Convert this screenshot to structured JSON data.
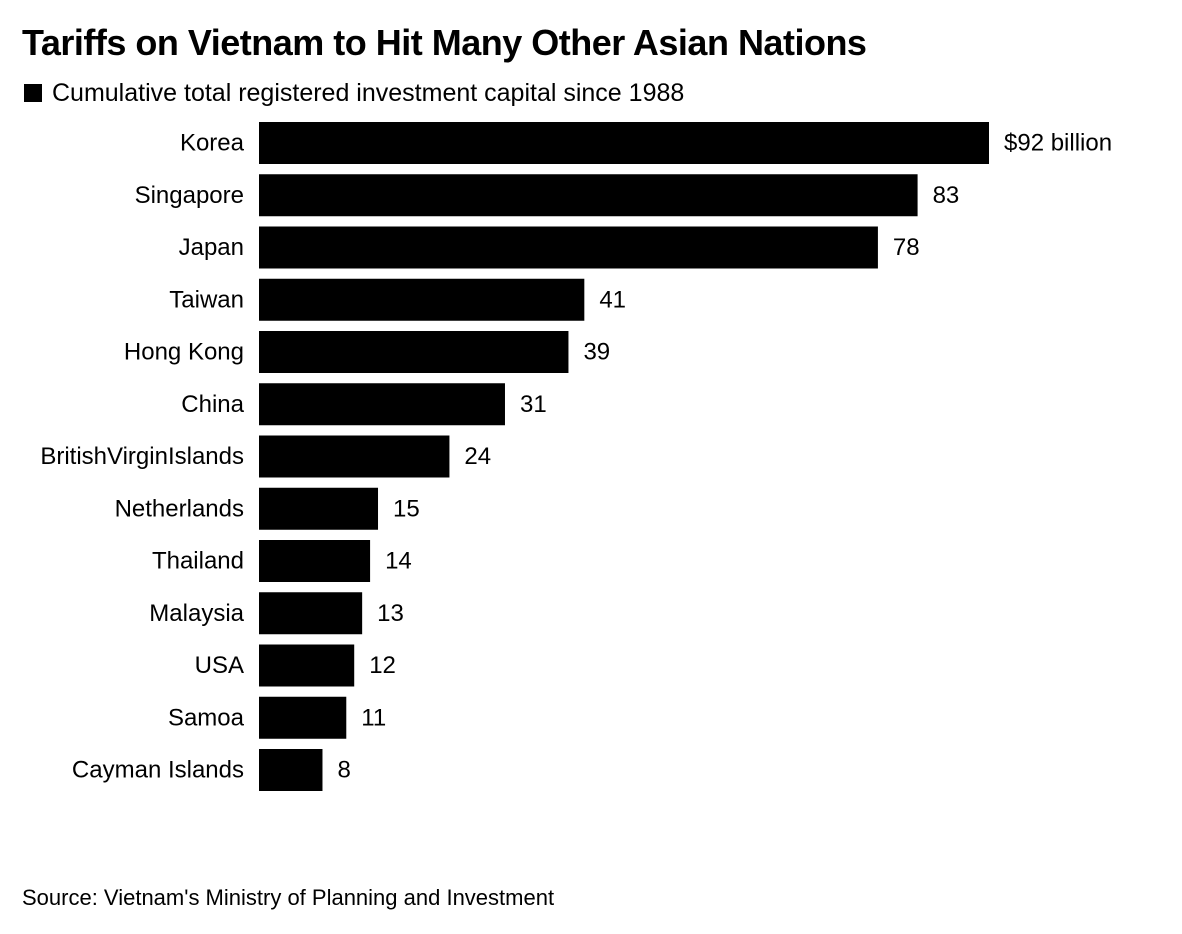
{
  "title": "Tariffs on Vietnam to Hit Many Other Asian Nations",
  "legend": {
    "label": "Cumulative total registered investment capital since 1988",
    "color": "#000000"
  },
  "source": "Source: Vietnam's Ministry of Planning and Investment",
  "chart_data": {
    "type": "bar",
    "orientation": "horizontal",
    "categories": [
      "Korea",
      "Singapore",
      "Japan",
      "Taiwan",
      "Hong Kong",
      "China",
      "BritishVirginIslands",
      "Netherlands",
      "Thailand",
      "Malaysia",
      "USA",
      "Samoa",
      "Cayman Islands"
    ],
    "values": [
      92,
      83,
      78,
      41,
      39,
      31,
      24,
      15,
      14,
      13,
      12,
      11,
      8
    ],
    "value_labels": [
      "$92 billion",
      "83",
      "78",
      "41",
      "39",
      "31",
      "24",
      "15",
      "14",
      "13",
      "12",
      "11",
      "8"
    ],
    "series": [
      {
        "name": "Cumulative total registered investment capital since 1988",
        "color": "#000000",
        "values": [
          92,
          83,
          78,
          41,
          39,
          31,
          24,
          15,
          14,
          13,
          12,
          11,
          8
        ]
      }
    ],
    "unit": "billion USD",
    "xlim": [
      0,
      92
    ],
    "grid": false,
    "legend_position": "top-left"
  }
}
